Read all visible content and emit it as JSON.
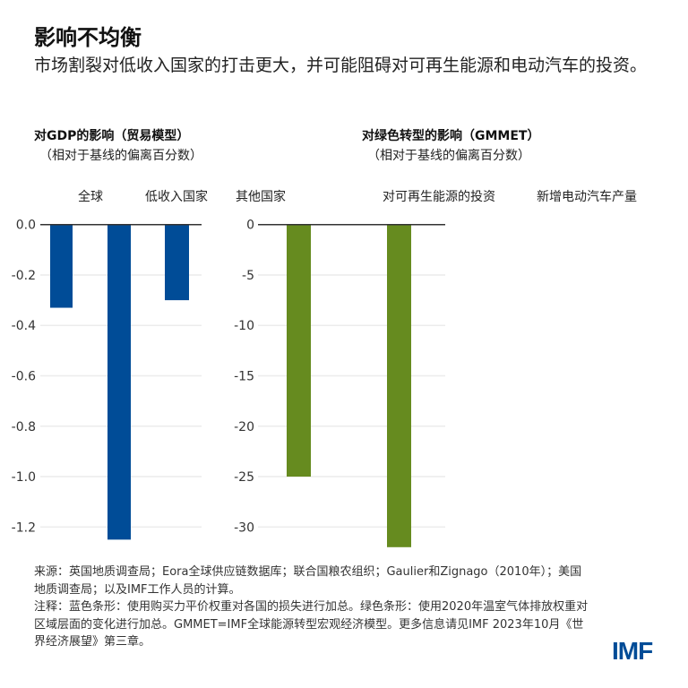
{
  "title": "影响不均衡",
  "subtitle": "市场割裂对低收入国家的打击更大，并可能阻碍对可再生能源和电动汽车的投资。",
  "chart_data": [
    {
      "type": "bar",
      "title": "对GDP的影响（贸易模型）",
      "subtitle": "（相对于基线的偏离百分数）",
      "categories": [
        "全球",
        "低收入国家",
        "其他国家"
      ],
      "values": [
        -0.33,
        -1.25,
        -0.3
      ],
      "ylim": [
        -1.3,
        0
      ],
      "yticks": [
        "0.0",
        "-0.2",
        "-0.4",
        "-0.6",
        "-0.8",
        "-1.0",
        "-1.2"
      ],
      "ytick_values": [
        0,
        -0.2,
        -0.4,
        -0.6,
        -0.8,
        -1.0,
        -1.2
      ],
      "grid": true,
      "color": "#004c97"
    },
    {
      "type": "bar",
      "title": "对绿色转型的影响（GMMET）",
      "subtitle": "（相对于基线的偏离百分数）",
      "categories": [
        "对可再生能源的投资",
        "新增电动汽车产量"
      ],
      "values": [
        -25,
        -32
      ],
      "ylim": [
        -32.5,
        0
      ],
      "yticks": [
        "0",
        "-5",
        "-10",
        "-15",
        "-20",
        "-25",
        "-30"
      ],
      "ytick_values": [
        0,
        -5,
        -10,
        -15,
        -20,
        -25,
        -30
      ],
      "grid": true,
      "color": "#668b1f"
    }
  ],
  "notes": {
    "source": "来源：英国地质调查局；Eora全球供应链数据库；联合国粮农组织；Gaulier和Zignago（2010年）；美国地质调查局；以及IMF工作人员的计算。",
    "note": "注释：蓝色条形：使用购买力平价权重对各国的损失进行加总。绿色条形：使用2020年温室气体排放权重对区域层面的变化进行加总。GMMET=IMF全球能源转型宏观经济模型。更多信息请见IMF 2023年10月《世界经济展望》第三章。"
  },
  "logo": "IMF"
}
